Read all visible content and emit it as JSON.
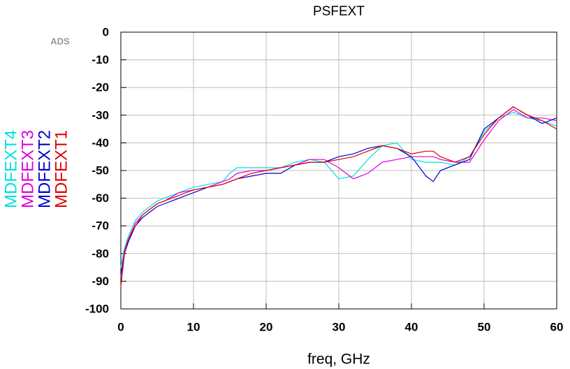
{
  "chart_data": {
    "type": "line",
    "title": "PSFEXT",
    "x_label": "freq, GHz",
    "annotations": [
      "ADS"
    ],
    "x": [
      0,
      0.5,
      1,
      2,
      3,
      4,
      5,
      6,
      8,
      10,
      12,
      14,
      15,
      16,
      18,
      20,
      22,
      24,
      26,
      28,
      30,
      32,
      34,
      36,
      38,
      40,
      42,
      43,
      44,
      46,
      48,
      50,
      52,
      54,
      56,
      58,
      60
    ],
    "series": [
      {
        "name": "MDFEXT4",
        "color": "#00e0e0",
        "values": [
          -85,
          -78,
          -74,
          -68,
          -65,
          -63,
          -61,
          -60,
          -58,
          -56,
          -55,
          -54,
          -51,
          -49,
          -49,
          -49,
          -49,
          -47,
          -46,
          -47,
          -53,
          -52,
          -46,
          -41,
          -40,
          -46,
          -47,
          -47,
          -47,
          -48,
          -45,
          -36,
          -31,
          -29,
          -31,
          -32,
          -34
        ]
      },
      {
        "name": "MDFEXT3",
        "color": "#e000e0",
        "values": [
          -88,
          -79,
          -75,
          -69,
          -66,
          -64,
          -62,
          -61,
          -58,
          -57,
          -56,
          -54,
          -53,
          -51,
          -50,
          -50,
          -49,
          -48,
          -46,
          -46,
          -49,
          -53,
          -51,
          -47,
          -46,
          -45,
          -45,
          -45,
          -46,
          -47,
          -47,
          -39,
          -32,
          -28,
          -31,
          -31,
          -32
        ]
      },
      {
        "name": "MDFEXT2",
        "color": "#0000d0",
        "values": [
          -88,
          -80,
          -76,
          -70,
          -67,
          -65,
          -63,
          -62,
          -60,
          -58,
          -56,
          -55,
          -54,
          -53,
          -52,
          -51,
          -51,
          -48,
          -47,
          -47,
          -45,
          -44,
          -42,
          -41,
          -42,
          -45,
          -52,
          -54,
          -50,
          -48,
          -46,
          -35,
          -31,
          -27,
          -30,
          -33,
          -31
        ]
      },
      {
        "name": "MDFEXT1",
        "color": "#e00000",
        "values": [
          -92,
          -80,
          -75,
          -70,
          -66,
          -64,
          -62,
          -61,
          -59,
          -57,
          -56,
          -55,
          -54,
          -53,
          -51,
          -50,
          -49,
          -48,
          -47,
          -47,
          -46,
          -45,
          -43,
          -41,
          -42,
          -44,
          -43,
          -43,
          -45,
          -47,
          -45,
          -37,
          -31,
          -27,
          -30,
          -32,
          -35
        ]
      }
    ],
    "xlim": [
      0,
      60
    ],
    "xticks": [
      0,
      10,
      20,
      30,
      40,
      50,
      60
    ],
    "ylim": [
      -100,
      0
    ],
    "yticks": [
      0,
      -10,
      -20,
      -30,
      -40,
      -50,
      -60,
      -70,
      -80,
      -90,
      -100
    ],
    "grid": true
  }
}
